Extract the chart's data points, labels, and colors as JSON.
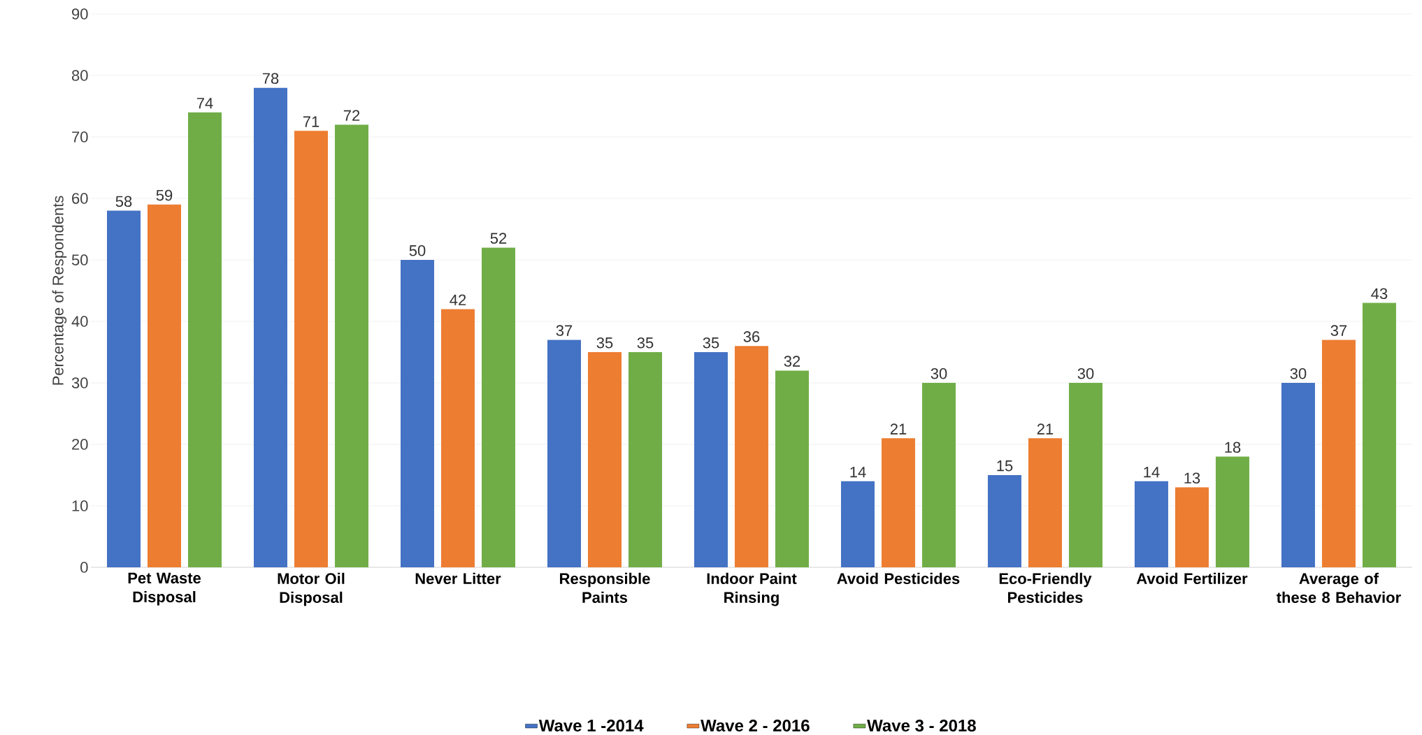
{
  "chart_data": {
    "type": "bar",
    "ylabel": "Percentage of Respondents",
    "categories": [
      "Pet Waste Disposal",
      "Motor Oil Disposal",
      "Never Litter",
      "Responsible Paints",
      "Indoor Paint Rinsing",
      "Avoid Pesticides",
      "Eco-Friendly Pesticides",
      "Avoid Fertilizer",
      "Average of these 8 Behavior"
    ],
    "series": [
      {
        "name": "Wave 1 -2014",
        "color": "#4472c4",
        "values": [
          58,
          78,
          50,
          37,
          35,
          14,
          15,
          14,
          30
        ]
      },
      {
        "name": "Wave 2 - 2016",
        "color": "#ed7d31",
        "values": [
          59,
          71,
          42,
          35,
          36,
          21,
          21,
          13,
          37
        ]
      },
      {
        "name": "Wave 3 - 2018",
        "color": "#70ad47",
        "values": [
          74,
          72,
          52,
          35,
          32,
          30,
          30,
          18,
          43
        ]
      }
    ],
    "ylim": [
      0,
      90
    ],
    "yticks": [
      0,
      10,
      20,
      30,
      40,
      50,
      60,
      70,
      80,
      90
    ],
    "grid": "y",
    "legend": "bottom",
    "data_labels": true
  }
}
